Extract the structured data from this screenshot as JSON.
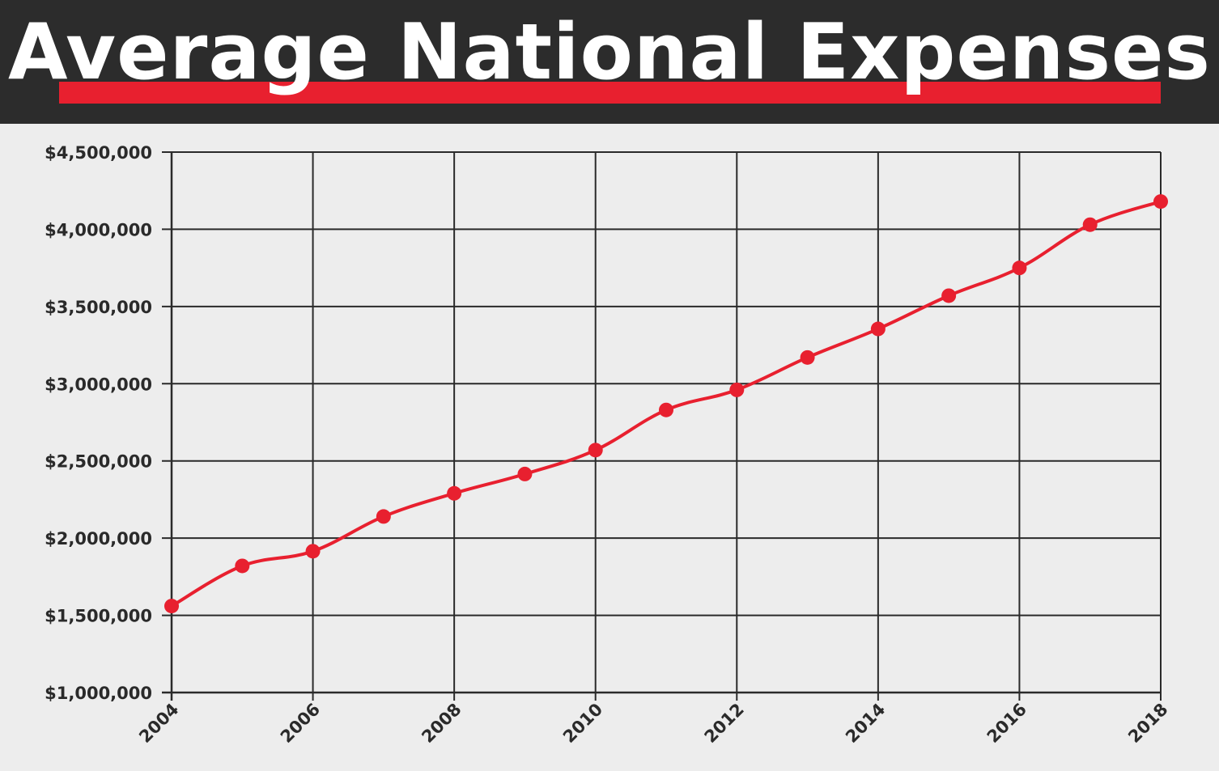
{
  "header": {
    "title": "Average National Expenses"
  },
  "colors": {
    "header_bg": "#2c2c2c",
    "accent": "#e8202f",
    "plot_bg": "#ededed",
    "grid": "#2a2a2a"
  },
  "chart_data": {
    "type": "line",
    "title": "Average National Expenses",
    "xlabel": "",
    "ylabel": "",
    "x": [
      2004,
      2005,
      2006,
      2007,
      2008,
      2009,
      2010,
      2011,
      2012,
      2013,
      2014,
      2015,
      2016,
      2017,
      2018
    ],
    "series": [
      {
        "values": [
          1560000,
          1820000,
          1915000,
          2140000,
          2290000,
          2415000,
          2570000,
          2830000,
          2960000,
          3170000,
          3355000,
          3570000,
          3750000,
          4030000,
          4180000
        ]
      }
    ],
    "xlim": [
      2004,
      2018
    ],
    "ylim": [
      1000000,
      4500000
    ],
    "x_ticks": [
      "2004",
      "2006",
      "2008",
      "2010",
      "2012",
      "2014",
      "2016",
      "2018"
    ],
    "y_ticks": [
      "$1,000,000",
      "$1,500,000",
      "$2,000,000",
      "$2,500,000",
      "$3,000,000",
      "$3,500,000",
      "$4,000,000",
      "$4,500,000"
    ],
    "grid": true,
    "legend": "none",
    "line_color": "#e8202f"
  }
}
